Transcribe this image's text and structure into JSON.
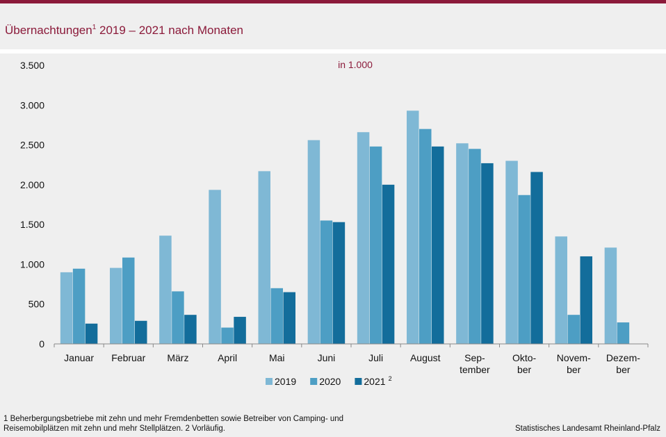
{
  "header": {
    "title_main": "Übernachtungen",
    "title_sup": "1",
    "title_rest": " 2019 – 2021 nach Monaten"
  },
  "chart_data": {
    "type": "bar",
    "unit_label": "in 1.000",
    "categories": [
      [
        "Januar"
      ],
      [
        "Februar"
      ],
      [
        "März"
      ],
      [
        "April"
      ],
      [
        "Mai"
      ],
      [
        "Juni"
      ],
      [
        "Juli"
      ],
      [
        "August"
      ],
      [
        "Sep-",
        "tember"
      ],
      [
        "Okto-",
        "ber"
      ],
      [
        "Novem-",
        "ber"
      ],
      [
        "Dezem-",
        "ber"
      ]
    ],
    "series": [
      {
        "name": "2019",
        "sup": "",
        "color": "#7fb8d5",
        "values": [
          900,
          955,
          1360,
          1935,
          2170,
          2560,
          2660,
          2930,
          2520,
          2300,
          1350,
          1210
        ]
      },
      {
        "name": "2020",
        "sup": "",
        "color": "#4d9ec4",
        "values": [
          945,
          1085,
          660,
          205,
          700,
          1550,
          2480,
          2700,
          2450,
          1870,
          365,
          270
        ]
      },
      {
        "name": "2021",
        "sup": "2",
        "color": "#136d9b",
        "values": [
          255,
          290,
          365,
          340,
          650,
          1530,
          2000,
          2480,
          2270,
          2160,
          1100,
          null
        ]
      }
    ],
    "ylim": [
      0,
      3500
    ],
    "yticks": [
      0,
      500,
      1000,
      1500,
      2000,
      2500,
      3000,
      3500
    ],
    "ytick_labels": [
      "0",
      "500",
      "1.000",
      "1.500",
      "2.000",
      "2.500",
      "3.000",
      "3.500"
    ],
    "legend_position": "bottom-center"
  },
  "footnote": "1 Beherbergungsbetriebe  mit zehn und mehr Fremdenbetten  sowie Betreiber von Camping- und Reisemobilplätzen  mit zehn und mehr Stellplätzen. 2 Vorläufig.",
  "source": "Statistisches Landesamt Rheinland-Pfalz"
}
